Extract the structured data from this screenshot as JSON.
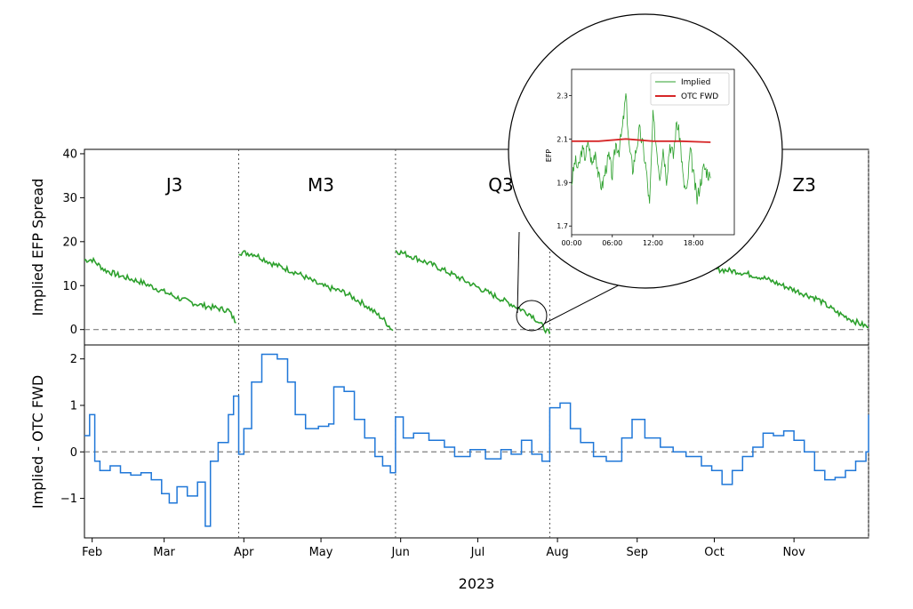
{
  "chart_data": [
    {
      "type": "line",
      "panel": "top",
      "ylabel": "Implied EFP Spread",
      "ylim": [
        -3.5,
        41
      ],
      "yticks": [
        0,
        10,
        20,
        30,
        40
      ],
      "reference_line_y": 0,
      "color": "#2ca02c",
      "contract_labels": [
        {
          "label": "J3",
          "x": "2023-03-05"
        },
        {
          "label": "M3",
          "x": "2023-05-01"
        },
        {
          "label": "Q3",
          "x": "2023-07-10"
        },
        {
          "label": "Z3",
          "x": "2023-11-05"
        }
      ],
      "series": [
        {
          "segments": [
            [
              [
                "2023-01-29",
                15.8
              ],
              [
                "2023-02-01",
                15.9
              ],
              [
                "2023-02-06",
                13.5
              ],
              [
                "2023-02-12",
                12.2
              ],
              [
                "2023-02-20",
                10.8
              ],
              [
                "2023-03-01",
                8.6
              ],
              [
                "2023-03-08",
                6.8
              ],
              [
                "2023-03-15",
                5.6
              ],
              [
                "2023-03-22",
                4.8
              ],
              [
                "2023-03-26",
                4.4
              ],
              [
                "2023-03-29",
                1.6
              ]
            ],
            [
              [
                "2023-03-30",
                17.6
              ],
              [
                "2023-04-05",
                17.2
              ],
              [
                "2023-04-12",
                15.0
              ],
              [
                "2023-04-22",
                12.8
              ],
              [
                "2023-05-01",
                10.0
              ],
              [
                "2023-05-10",
                8.5
              ],
              [
                "2023-05-18",
                5.7
              ],
              [
                "2023-05-25",
                2.5
              ],
              [
                "2023-05-29",
                -0.2
              ]
            ],
            [
              [
                "2023-05-30",
                18.0
              ],
              [
                "2023-06-06",
                16.5
              ],
              [
                "2023-06-15",
                14.3
              ],
              [
                "2023-06-25",
                11.4
              ],
              [
                "2023-07-05",
                8.4
              ],
              [
                "2023-07-15",
                5.5
              ],
              [
                "2023-07-22",
                3.3
              ],
              [
                "2023-07-29",
                -1.0
              ]
            ],
            [
              [
                "2023-10-01",
                13.8
              ],
              [
                "2023-10-10",
                13.2
              ],
              [
                "2023-10-20",
                11.8
              ],
              [
                "2023-11-01",
                9.0
              ],
              [
                "2023-11-10",
                7.0
              ],
              [
                "2023-11-18",
                3.8
              ],
              [
                "2023-11-26",
                1.5
              ],
              [
                "2023-11-30",
                0.5
              ]
            ]
          ]
        }
      ]
    },
    {
      "type": "line",
      "panel": "bottom",
      "xlabel": "2023",
      "ylabel": "Implied - OTC FWD",
      "ylim": [
        -1.85,
        2.3
      ],
      "yticks": [
        -1,
        0,
        1,
        2
      ],
      "reference_line_y": 0,
      "color": "#1f77d8",
      "x_range": [
        "2023-01-29",
        "2023-11-30"
      ],
      "x_ticks": [
        "Feb",
        "Mar",
        "Apr",
        "May",
        "Jun",
        "Jul",
        "Aug",
        "Sep",
        "Oct",
        "Nov"
      ],
      "x_tick_dates": [
        "2023-02-01",
        "2023-03-01",
        "2023-04-01",
        "2023-05-01",
        "2023-06-01",
        "2023-07-01",
        "2023-08-01",
        "2023-09-01",
        "2023-10-01",
        "2023-11-01"
      ],
      "vertical_markers": [
        "2023-03-30",
        "2023-05-30",
        "2023-07-29",
        "2023-11-30"
      ],
      "series": [
        {
          "points": [
            [
              "2023-01-29",
              0.35
            ],
            [
              "2023-01-31",
              0.8
            ],
            [
              "2023-02-02",
              -0.2
            ],
            [
              "2023-02-04",
              -0.4
            ],
            [
              "2023-02-08",
              -0.3
            ],
            [
              "2023-02-12",
              -0.45
            ],
            [
              "2023-02-16",
              -0.5
            ],
            [
              "2023-02-20",
              -0.45
            ],
            [
              "2023-02-24",
              -0.6
            ],
            [
              "2023-02-28",
              -0.9
            ],
            [
              "2023-03-03",
              -1.1
            ],
            [
              "2023-03-06",
              -0.75
            ],
            [
              "2023-03-10",
              -0.95
            ],
            [
              "2023-03-14",
              -0.65
            ],
            [
              "2023-03-17",
              -1.6
            ],
            [
              "2023-03-19",
              -0.2
            ],
            [
              "2023-03-22",
              0.2
            ],
            [
              "2023-03-26",
              0.8
            ],
            [
              "2023-03-28",
              1.2
            ],
            [
              "2023-03-30",
              -0.05
            ],
            [
              "2023-04-01",
              0.5
            ],
            [
              "2023-04-04",
              1.5
            ],
            [
              "2023-04-08",
              2.1
            ],
            [
              "2023-04-14",
              2.0
            ],
            [
              "2023-04-18",
              1.5
            ],
            [
              "2023-04-21",
              0.8
            ],
            [
              "2023-04-25",
              0.5
            ],
            [
              "2023-04-30",
              0.55
            ],
            [
              "2023-05-04",
              0.6
            ],
            [
              "2023-05-06",
              1.4
            ],
            [
              "2023-05-10",
              1.3
            ],
            [
              "2023-05-14",
              0.7
            ],
            [
              "2023-05-18",
              0.3
            ],
            [
              "2023-05-22",
              -0.1
            ],
            [
              "2023-05-25",
              -0.3
            ],
            [
              "2023-05-28",
              -0.45
            ],
            [
              "2023-05-30",
              0.75
            ],
            [
              "2023-06-02",
              0.3
            ],
            [
              "2023-06-06",
              0.4
            ],
            [
              "2023-06-12",
              0.25
            ],
            [
              "2023-06-18",
              0.1
            ],
            [
              "2023-06-22",
              -0.1
            ],
            [
              "2023-06-28",
              0.05
            ],
            [
              "2023-07-04",
              -0.15
            ],
            [
              "2023-07-10",
              0.05
            ],
            [
              "2023-07-14",
              -0.05
            ],
            [
              "2023-07-18",
              0.25
            ],
            [
              "2023-07-22",
              -0.05
            ],
            [
              "2023-07-26",
              -0.2
            ],
            [
              "2023-07-29",
              0.95
            ],
            [
              "2023-08-02",
              1.05
            ],
            [
              "2023-08-06",
              0.5
            ],
            [
              "2023-08-10",
              0.2
            ],
            [
              "2023-08-15",
              -0.1
            ],
            [
              "2023-08-20",
              -0.2
            ],
            [
              "2023-08-26",
              0.3
            ],
            [
              "2023-08-30",
              0.7
            ],
            [
              "2023-09-04",
              0.3
            ],
            [
              "2023-09-10",
              0.1
            ],
            [
              "2023-09-15",
              0.0
            ],
            [
              "2023-09-20",
              -0.1
            ],
            [
              "2023-09-26",
              -0.3
            ],
            [
              "2023-09-30",
              -0.4
            ],
            [
              "2023-10-04",
              -0.7
            ],
            [
              "2023-10-08",
              -0.4
            ],
            [
              "2023-10-12",
              -0.1
            ],
            [
              "2023-10-16",
              0.1
            ],
            [
              "2023-10-20",
              0.4
            ],
            [
              "2023-10-24",
              0.35
            ],
            [
              "2023-10-28",
              0.45
            ],
            [
              "2023-11-01",
              0.25
            ],
            [
              "2023-11-05",
              0.0
            ],
            [
              "2023-11-09",
              -0.4
            ],
            [
              "2023-11-13",
              -0.6
            ],
            [
              "2023-11-17",
              -0.55
            ],
            [
              "2023-11-21",
              -0.4
            ],
            [
              "2023-11-25",
              -0.2
            ],
            [
              "2023-11-29",
              0.0
            ],
            [
              "2023-11-30",
              0.8
            ]
          ]
        }
      ]
    },
    {
      "type": "line",
      "panel": "inset",
      "ylabel": "EFP",
      "ylim": [
        1.66,
        2.42
      ],
      "yticks": [
        1.7,
        1.9,
        2.1,
        2.3
      ],
      "xlim": [
        0,
        24
      ],
      "x_ticks": [
        "00:00",
        "06:00",
        "12:00",
        "18:00"
      ],
      "legend": "top-right",
      "series": [
        {
          "name": "Implied",
          "color": "#2ca02c",
          "points": [
            [
              0,
              1.9
            ],
            [
              0.5,
              2.0
            ],
            [
              1,
              1.96
            ],
            [
              1.5,
              2.05
            ],
            [
              2,
              2.02
            ],
            [
              2.5,
              2.08
            ],
            [
              3,
              1.98
            ],
            [
              3.5,
              2.05
            ],
            [
              4,
              1.92
            ],
            [
              4.5,
              1.88
            ],
            [
              5,
              1.96
            ],
            [
              5.5,
              2.02
            ],
            [
              6,
              1.93
            ],
            [
              6.5,
              2.08
            ],
            [
              7,
              2.05
            ],
            [
              7.5,
              2.15
            ],
            [
              8,
              2.3
            ],
            [
              8.5,
              2.06
            ],
            [
              9,
              1.96
            ],
            [
              9.5,
              2.05
            ],
            [
              10,
              2.14
            ],
            [
              10.5,
              2.07
            ],
            [
              11,
              1.96
            ],
            [
              11.5,
              1.79
            ],
            [
              12,
              2.2
            ],
            [
              12.5,
              2.07
            ],
            [
              13,
              1.93
            ],
            [
              13.5,
              2.06
            ],
            [
              14,
              1.92
            ],
            [
              14.5,
              2.08
            ],
            [
              15,
              2.02
            ],
            [
              15.5,
              2.18
            ],
            [
              16,
              2.1
            ],
            [
              16.5,
              1.9
            ],
            [
              17,
              1.85
            ],
            [
              17.5,
              2.05
            ],
            [
              18,
              1.93
            ],
            [
              18.5,
              1.82
            ],
            [
              19,
              1.9
            ],
            [
              19.5,
              1.97
            ],
            [
              20,
              1.95
            ],
            [
              20.5,
              1.92
            ]
          ]
        },
        {
          "name": "OTC FWD",
          "color": "#d62728",
          "points": [
            [
              0,
              2.09
            ],
            [
              4,
              2.09
            ],
            [
              8,
              2.1
            ],
            [
              12,
              2.09
            ],
            [
              16,
              2.09
            ],
            [
              20.5,
              2.085
            ]
          ]
        }
      ]
    }
  ]
}
